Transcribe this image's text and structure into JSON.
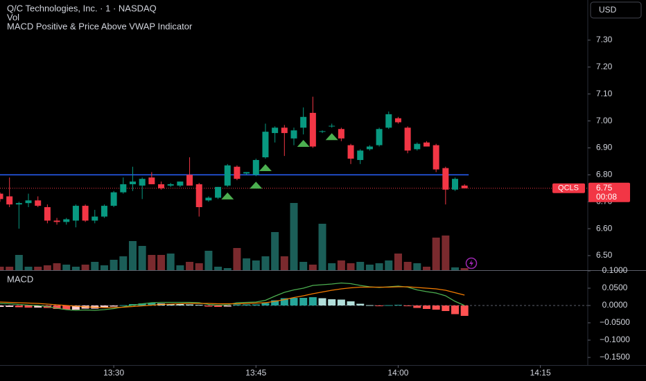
{
  "chart_data": {
    "type": "candlestick",
    "title": "Q/C Technologies, Inc. · 1 · NASDAQ",
    "volume_title": "Vol",
    "indicator_title": "MACD Positive & Price Above VWAP Indicator",
    "currency": "USD",
    "x": [
      "13:18",
      "13:19",
      "13:20",
      "13:21",
      "13:22",
      "13:23",
      "13:24",
      "13:25",
      "13:26",
      "13:27",
      "13:28",
      "13:29",
      "13:30",
      "13:31",
      "13:32",
      "13:33",
      "13:34",
      "13:35",
      "13:36",
      "13:37",
      "13:38",
      "13:39",
      "13:40",
      "13:41",
      "13:42",
      "13:43",
      "13:44",
      "13:45",
      "13:46",
      "13:47",
      "13:48",
      "13:49",
      "13:50",
      "13:51",
      "13:52",
      "13:53",
      "13:54",
      "13:55",
      "13:56",
      "13:57",
      "13:58",
      "13:59",
      "14:00",
      "14:01",
      "14:02",
      "14:03",
      "14:04",
      "14:05",
      "14:06",
      "14:07"
    ],
    "open": [
      6.73,
      6.72,
      6.69,
      6.695,
      6.705,
      6.68,
      6.63,
      6.625,
      6.63,
      6.685,
      6.63,
      6.645,
      6.685,
      6.735,
      6.765,
      6.76,
      6.79,
      6.765,
      6.76,
      6.76,
      6.8,
      6.765,
      6.705,
      6.715,
      6.76,
      6.83,
      6.805,
      6.8,
      6.865,
      6.955,
      6.975,
      6.935,
      6.975,
      7.03,
      6.96,
      6.98,
      6.97,
      6.91,
      6.855,
      6.895,
      6.91,
      6.975,
      7.01,
      6.975,
      6.895,
      6.92,
      6.91,
      6.825,
      6.745,
      6.76
    ],
    "high": [
      6.735,
      6.79,
      6.7,
      6.73,
      6.72,
      6.69,
      6.64,
      6.64,
      6.69,
      6.69,
      6.67,
      6.69,
      6.74,
      6.79,
      6.83,
      6.79,
      6.81,
      6.775,
      6.77,
      6.775,
      6.865,
      6.77,
      6.72,
      6.755,
      6.84,
      6.835,
      6.81,
      6.86,
      6.99,
      6.98,
      6.985,
      6.975,
      7.05,
      7.09,
      6.965,
      6.99,
      6.975,
      6.915,
      6.895,
      6.91,
      6.975,
      7.035,
      7.015,
      6.98,
      6.92,
      6.925,
      6.915,
      6.83,
      6.79,
      6.765
    ],
    "low": [
      6.7,
      6.68,
      6.6,
      6.68,
      6.68,
      6.62,
      6.615,
      6.615,
      6.605,
      6.625,
      6.62,
      6.64,
      6.68,
      6.73,
      6.74,
      6.71,
      6.765,
      6.745,
      6.755,
      6.755,
      6.76,
      6.645,
      6.7,
      6.71,
      6.755,
      6.78,
      6.8,
      6.795,
      6.86,
      6.92,
      6.87,
      6.91,
      6.95,
      6.9,
      6.955,
      6.975,
      6.925,
      6.84,
      6.84,
      6.89,
      6.905,
      6.97,
      6.99,
      6.88,
      6.89,
      6.905,
      6.81,
      6.69,
      6.74,
      6.75
    ],
    "close": [
      6.71,
      6.69,
      6.695,
      6.705,
      6.685,
      6.63,
      6.625,
      6.635,
      6.685,
      6.63,
      6.645,
      6.685,
      6.735,
      6.765,
      6.775,
      6.785,
      6.765,
      6.75,
      6.765,
      6.775,
      6.76,
      6.68,
      6.715,
      6.755,
      6.835,
      6.785,
      6.81,
      6.855,
      6.96,
      6.975,
      6.955,
      6.965,
      7.015,
      6.905,
      6.962,
      6.982,
      6.935,
      6.86,
      6.89,
      6.905,
      6.97,
      7.025,
      6.995,
      6.89,
      6.915,
      6.905,
      6.82,
      6.745,
      6.785,
      6.75
    ],
    "volume": [
      5000,
      5000,
      22000,
      5000,
      5000,
      7000,
      10000,
      8000,
      5000,
      8000,
      12000,
      7000,
      15000,
      20000,
      42000,
      35000,
      22000,
      22000,
      24000,
      7000,
      12000,
      10000,
      28000,
      5000,
      3000,
      32000,
      17000,
      14000,
      20000,
      55000,
      20000,
      97000,
      12000,
      8000,
      67000,
      10000,
      14000,
      10000,
      12000,
      8000,
      10000,
      14000,
      24000,
      12000,
      10000,
      5000,
      47000,
      50000,
      4000,
      3000
    ],
    "up_color": "#089981",
    "down_color": "#f23645",
    "volume_up_color": "#1b5e58",
    "volume_down_color": "#7a2a2e",
    "xlim": [
      "13:18",
      "14:20"
    ],
    "xticks": [
      "13:30",
      "13:45",
      "14:00",
      "14:15"
    ],
    "ylim": [
      6.446,
      7.449
    ],
    "yticks": [
      {
        "value": 6.5,
        "label": "6.50"
      },
      {
        "value": 6.6,
        "label": "6.60"
      },
      {
        "value": 6.7,
        "label": "6.70"
      },
      {
        "value": 6.8,
        "label": "6.80"
      },
      {
        "value": 6.9,
        "label": "6.90"
      },
      {
        "value": 7,
        "label": "7.00"
      },
      {
        "value": 7.1,
        "label": "7.10"
      },
      {
        "value": 7.2,
        "label": "7.20"
      },
      {
        "value": 7.3,
        "label": "7.30"
      }
    ],
    "grid": false,
    "vwap": 6.8,
    "vwap_color": "#2962ff",
    "markers": [
      "13:42",
      "13:45",
      "13:46",
      "13:50",
      "13:53"
    ],
    "marker_color": "#4caf50",
    "symbol_tag": "QCLS",
    "last_price": 6.75,
    "countdown": "00:08",
    "macd_pane": {
      "title": "MACD",
      "ylim": [
        -0.172,
        0.098
      ],
      "yticks": [
        {
          "value": -0.15,
          "label": "−0.1500"
        },
        {
          "value": -0.1,
          "label": "−0.1000"
        },
        {
          "value": -0.05,
          "label": "−0.0500"
        },
        {
          "value": 0,
          "label": "0.0000"
        },
        {
          "value": 0.05,
          "label": "0.0500"
        },
        {
          "value": 0.1,
          "label": "0.1000"
        }
      ],
      "histogram": [
        -0.004,
        -0.004,
        -0.005,
        -0.006,
        -0.006,
        -0.007,
        -0.01,
        -0.012,
        -0.012,
        -0.009,
        -0.009,
        -0.006,
        -0.003,
        0.001,
        0.004,
        0.006,
        0.007,
        0.006,
        0.005,
        0.004,
        0.003,
        0.002,
        -0.003,
        -0.004,
        -0.003,
        0.003,
        0.003,
        0.003,
        0.007,
        0.015,
        0.021,
        0.022,
        0.022,
        0.024,
        0.021,
        0.018,
        0.017,
        0.012,
        0.005,
        0.001,
        -0.001,
        0.001,
        0.002,
        -0.001,
        -0.007,
        -0.01,
        -0.012,
        -0.016,
        -0.025,
        -0.03
      ],
      "histogram_colors": {
        "pos_up": "#26a69a",
        "pos_down": "#b2dfdb",
        "neg_down": "#ff5252",
        "neg_up": "#ffcdd2"
      },
      "series": [
        {
          "color": "#4caf50",
          "values": [
            0.006,
            0.005,
            0.003,
            0.001,
            0,
            -0.003,
            -0.008,
            -0.012,
            -0.014,
            -0.013,
            -0.014,
            -0.012,
            -0.009,
            -0.004,
            0.001,
            0.005,
            0.008,
            0.009,
            0.009,
            0.009,
            0.009,
            0.008,
            0.003,
            0.001,
            0.002,
            0.008,
            0.009,
            0.01,
            0.015,
            0.027,
            0.038,
            0.045,
            0.05,
            0.058,
            0.06,
            0.062,
            0.065,
            0.063,
            0.058,
            0.054,
            0.052,
            0.054,
            0.056,
            0.053,
            0.045,
            0.04,
            0.036,
            0.028,
            0.012,
            0
          ]
        },
        {
          "color": "#f57c00",
          "values": [
            0.01,
            0.009,
            0.008,
            0.007,
            0.006,
            0.004,
            0.002,
            0,
            -0.002,
            -0.004,
            -0.005,
            -0.006,
            -0.006,
            -0.005,
            -0.003,
            -0.001,
            0.001,
            0.003,
            0.004,
            0.005,
            0.006,
            0.006,
            0.006,
            0.005,
            0.005,
            0.005,
            0.006,
            0.007,
            0.008,
            0.012,
            0.017,
            0.023,
            0.028,
            0.034,
            0.039,
            0.044,
            0.048,
            0.051,
            0.053,
            0.053,
            0.053,
            0.053,
            0.054,
            0.054,
            0.052,
            0.05,
            0.048,
            0.044,
            0.037,
            0.03
          ]
        }
      ]
    }
  }
}
